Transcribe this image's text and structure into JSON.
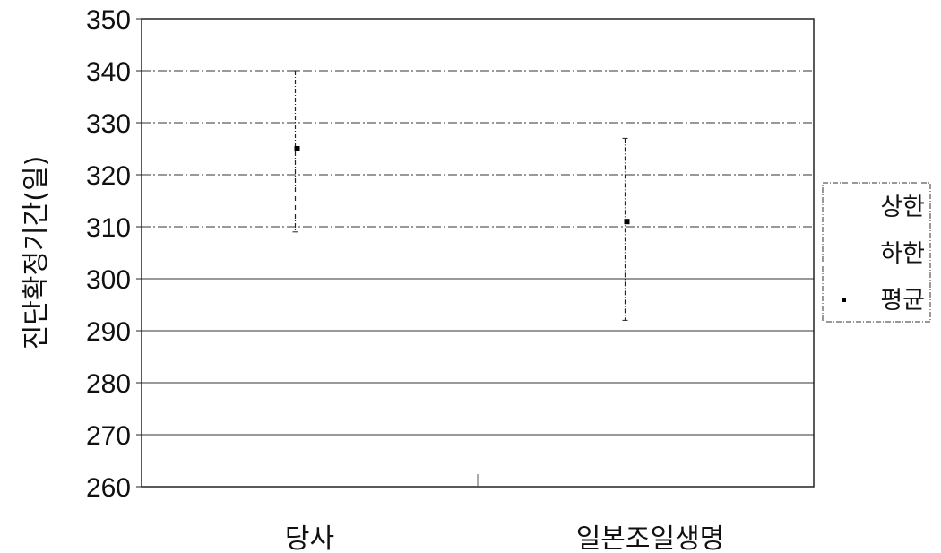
{
  "chart_data": {
    "type": "scatter",
    "title": "",
    "xlabel": "",
    "ylabel": "진단확정기간(일)",
    "ylim": [
      260,
      350
    ],
    "ytick_step": 10,
    "yticks": [
      "260",
      "270",
      "280",
      "290",
      "300",
      "310",
      "320",
      "330",
      "340",
      "350"
    ],
    "categories": [
      "당사",
      "일본조일생명"
    ],
    "series": [
      {
        "name": "상한",
        "values": [
          340,
          327
        ]
      },
      {
        "name": "하한",
        "values": [
          309,
          292
        ]
      },
      {
        "name": "평균",
        "values": [
          325,
          311
        ]
      }
    ],
    "grid": true,
    "legend": "right"
  }
}
